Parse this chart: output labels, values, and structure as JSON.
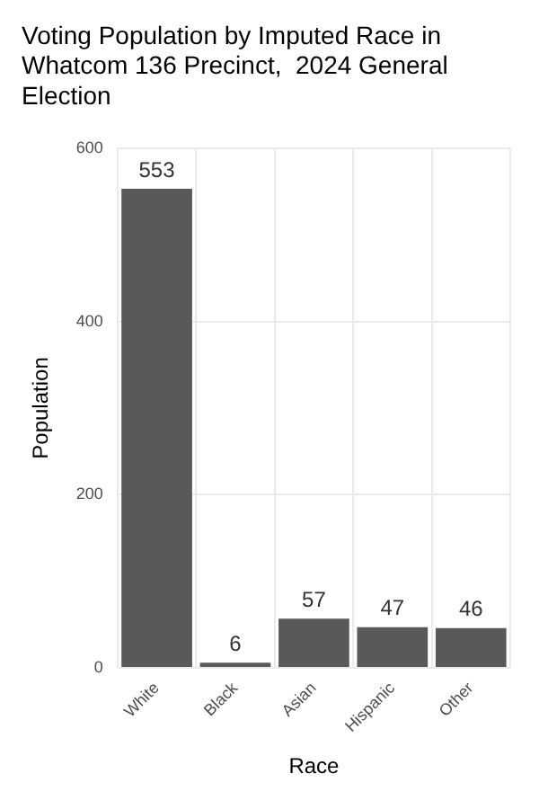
{
  "chart_data": {
    "type": "bar",
    "title": "Voting Population by Imputed Race in Whatcom 136 Precinct,  2024 General Election",
    "xlabel": "Race",
    "ylabel": "Population",
    "categories": [
      "White",
      "Black",
      "Asian",
      "Hispanic",
      "Other"
    ],
    "values": [
      553,
      6,
      57,
      47,
      46
    ],
    "color": "#595959",
    "ylim": [
      0,
      600
    ],
    "yticks": [
      0,
      200,
      400,
      600
    ],
    "grid": true,
    "data_labels": true,
    "legend": false
  }
}
